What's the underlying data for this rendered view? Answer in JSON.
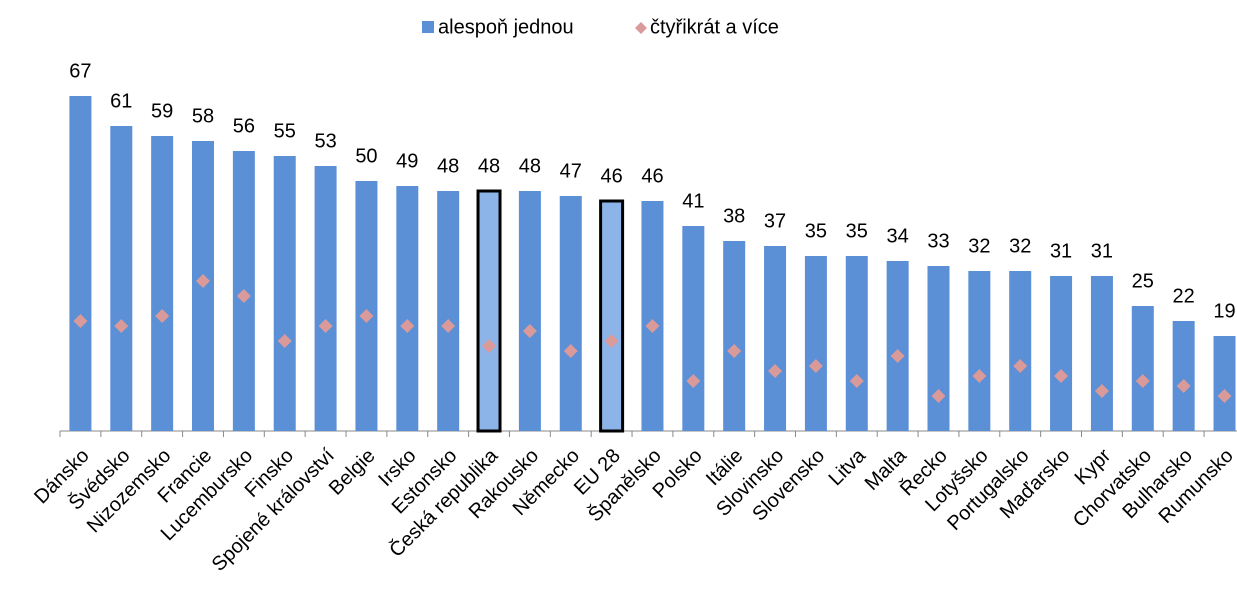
{
  "chart_data": {
    "type": "bar",
    "categories": [
      "Dánsko",
      "Švédsko",
      "Nizozemsko",
      "Francie",
      "Lucembursko",
      "Finsko",
      "Spojené království",
      "Belgie",
      "Irsko",
      "Estonsko",
      "Česká republika",
      "Rakousko",
      "Německo",
      "EU 28",
      "Španělsko",
      "Polsko",
      "Itálie",
      "Slovinsko",
      "Slovensko",
      "Litva",
      "Malta",
      "Řecko",
      "Lotyšsko",
      "Portugalsko",
      "Maďarsko",
      "Kypr",
      "Chorvatsko",
      "Bulharsko",
      "Rumunsko"
    ],
    "series": [
      {
        "name": "alespoň jednou",
        "color": "#5b8fd6",
        "marker": "bar",
        "values": [
          67,
          61,
          59,
          58,
          56,
          55,
          53,
          50,
          49,
          48,
          48,
          48,
          47,
          46,
          46,
          41,
          38,
          37,
          35,
          35,
          34,
          33,
          32,
          32,
          31,
          31,
          25,
          22,
          19
        ],
        "highlight": [
          10,
          13
        ],
        "highlight_color": "#8db4e8"
      },
      {
        "name": "čtyřikrát a více",
        "color": "#da9a9a",
        "marker": "diamond",
        "values": [
          22,
          21,
          23,
          30,
          27,
          18,
          21,
          23,
          21,
          21,
          17,
          20,
          16,
          18,
          21,
          10,
          16,
          12,
          13,
          10,
          15,
          7,
          11,
          13,
          11,
          8,
          10,
          9,
          7
        ]
      }
    ],
    "ylim": [
      0,
      70
    ],
    "legend": "top"
  }
}
